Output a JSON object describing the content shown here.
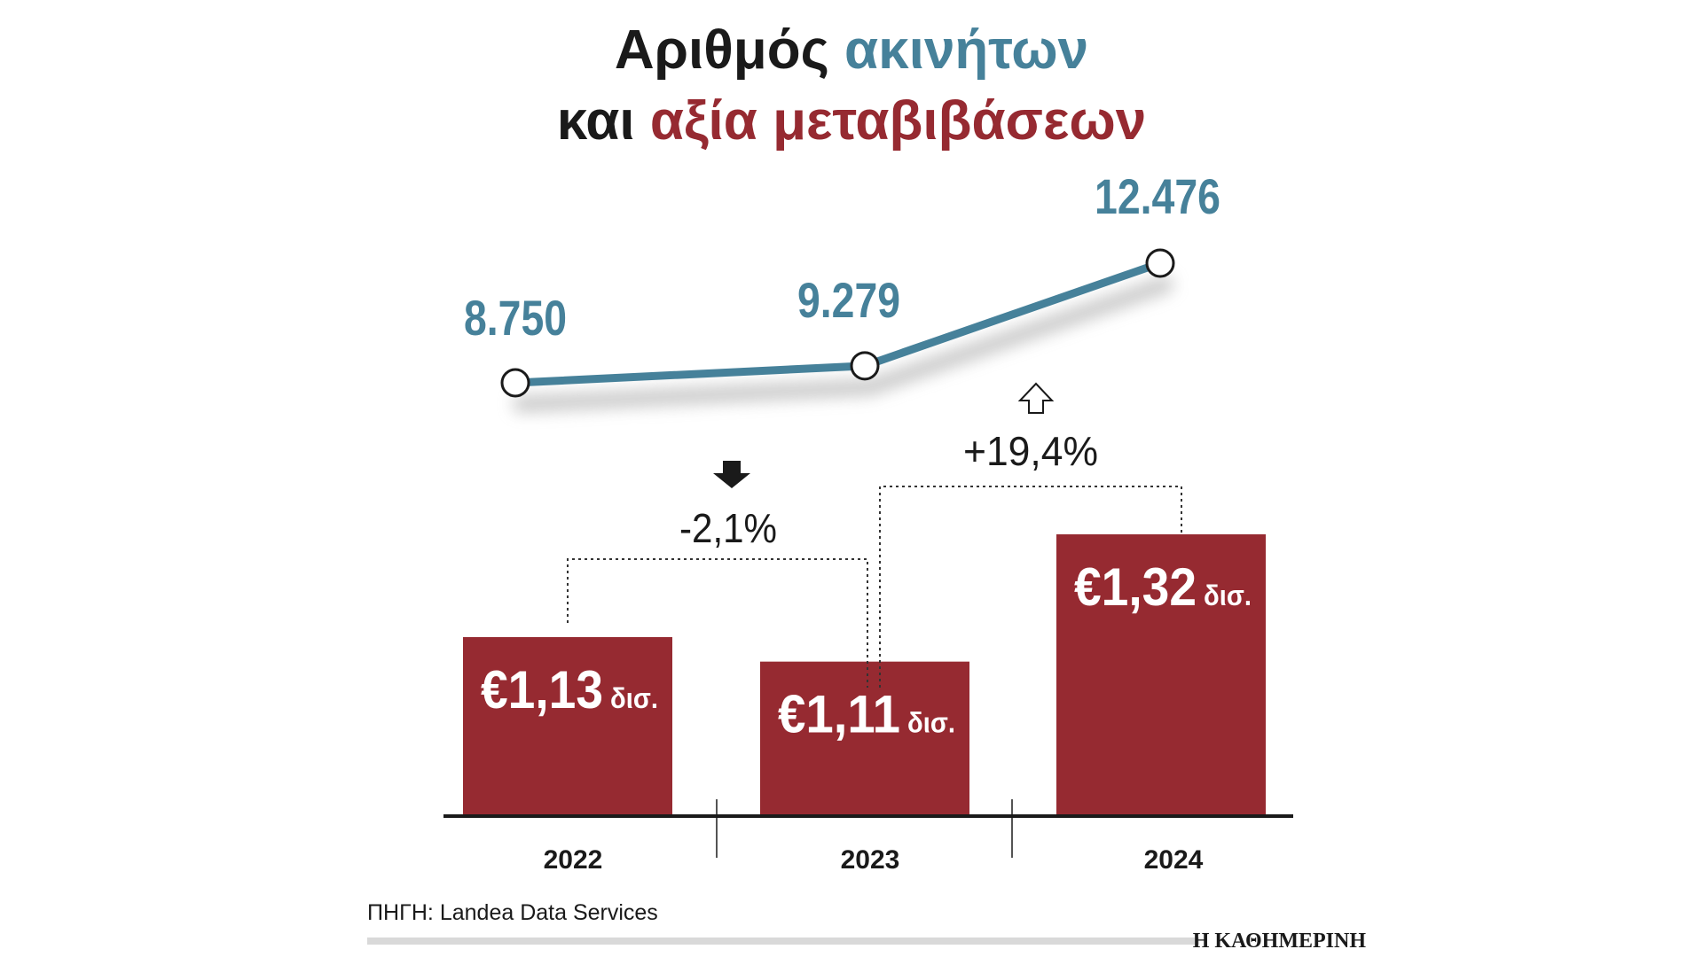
{
  "title": {
    "line1_part1": "Αριθμός ",
    "line1_part2": "ακινήτων",
    "line2_part1": "και ",
    "line2_part2": "αξία μεταβιβάσεων"
  },
  "colors": {
    "line": "#46819a",
    "bar": "#962a31",
    "dark": "#1a1a1a",
    "source_rule": "#d9d9d9"
  },
  "chart_data": [
    {
      "type": "line",
      "name": "Αριθμός ακινήτων",
      "categories": [
        "2022",
        "2023",
        "2024"
      ],
      "values": [
        8750,
        9279,
        12476
      ],
      "data_labels": [
        "8.750",
        "9.279",
        "12.476"
      ]
    },
    {
      "type": "bar",
      "name": "αξία μεταβιβάσεων",
      "categories": [
        "2022",
        "2023",
        "2024"
      ],
      "values": [
        1.13,
        1.11,
        1.32
      ],
      "data_labels": [
        "€1,13",
        "€1,11",
        "€1,32"
      ],
      "unit_label": "δισ.",
      "changes": [
        {
          "from": "2022",
          "to": "2023",
          "label": "-2,1%",
          "direction": "down"
        },
        {
          "from": "2023",
          "to": "2024",
          "label": "+19,4%",
          "direction": "up"
        }
      ]
    }
  ],
  "footer": {
    "source": "ΠΗΓΗ: Landea Data Services",
    "brand": "Η ΚΑΘΗΜΕΡΙΝΗ"
  }
}
